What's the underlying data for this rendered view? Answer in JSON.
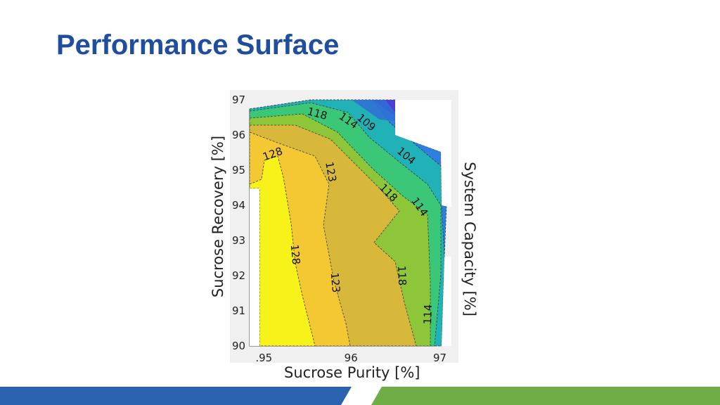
{
  "slide": {
    "title": "Performance Surface"
  },
  "colors": {
    "title": "#1f4e9e",
    "footer_left": "#2a62b0",
    "footer_right": "#70ad47",
    "level_fills": [
      "#4a3fd0",
      "#2d7fe0",
      "#21b2b8",
      "#3ac878",
      "#8ec63a",
      "#d7b83a",
      "#e8b030",
      "#f4c832",
      "#f7f21a"
    ]
  },
  "chart_data": {
    "type": "contour",
    "xlabel": "Sucrose Purity [%]",
    "ylabel": "Sucrose Recovery [%]",
    "zlabel": "System Capacity [%]",
    "xlim": [
      94.95,
      97
    ],
    "ylim": [
      90,
      97
    ],
    "x_ticks": [
      ".95",
      "96",
      "97"
    ],
    "y_ticks": [
      "90",
      "91",
      "92",
      "93",
      "94",
      "95",
      "96",
      "97"
    ],
    "grid": false,
    "levels": [
      104,
      109,
      114,
      118,
      123,
      128
    ],
    "contour_labels": [
      {
        "text": "118",
        "x": 95.6,
        "y": 96.6,
        "angle": 15
      },
      {
        "text": "114",
        "x": 95.95,
        "y": 96.4,
        "angle": 35
      },
      {
        "text": "109",
        "x": 96.15,
        "y": 96.35,
        "angle": 40
      },
      {
        "text": "104",
        "x": 96.6,
        "y": 95.4,
        "angle": 40
      },
      {
        "text": "128",
        "x": 95.1,
        "y": 95.45,
        "angle": -20
      },
      {
        "text": "123",
        "x": 95.75,
        "y": 94.95,
        "angle": 80
      },
      {
        "text": "118",
        "x": 96.4,
        "y": 94.35,
        "angle": 45
      },
      {
        "text": "114",
        "x": 96.75,
        "y": 93.95,
        "angle": 55
      },
      {
        "text": "128",
        "x": 95.35,
        "y": 92.6,
        "angle": 85
      },
      {
        "text": "123",
        "x": 95.8,
        "y": 91.8,
        "angle": 85
      },
      {
        "text": "118",
        "x": 96.55,
        "y": 92.0,
        "angle": 88
      },
      {
        "text": "114",
        "x": 96.85,
        "y": 90.9,
        "angle": -88
      }
    ]
  }
}
